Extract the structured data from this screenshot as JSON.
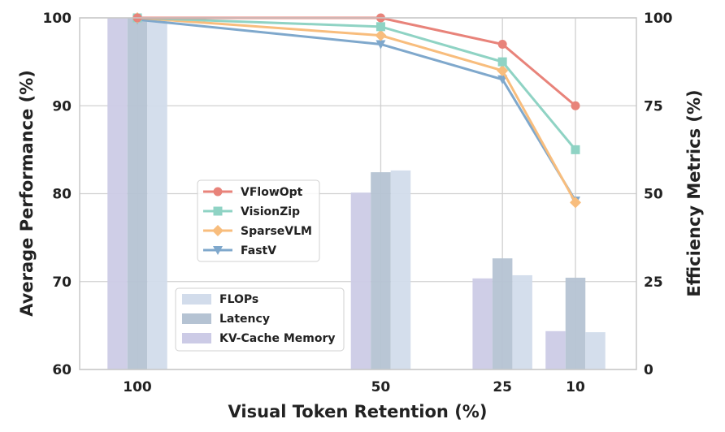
{
  "chart_data": {
    "type": "line+bar",
    "xlabel": "Visual Token Retention (%)",
    "ylabel_left": "Average Performance (%)",
    "ylabel_right": "Efficiency Metrics (%)",
    "x": [
      100,
      50,
      25,
      10
    ],
    "x_tick_labels": [
      "100",
      "50",
      "25",
      "10"
    ],
    "x_axis": "reversed linear",
    "ylim_left": [
      60,
      100
    ],
    "yticks_left": [
      "60",
      "70",
      "80",
      "90",
      "100"
    ],
    "ylim_right": [
      0,
      100
    ],
    "yticks_right": [
      "0",
      "25",
      "50",
      "75",
      "100"
    ],
    "grid": true,
    "line_series": [
      {
        "name": "VFlowOpt",
        "values": [
          100,
          100,
          97,
          90
        ],
        "color": "#e8837a",
        "marker": "circle"
      },
      {
        "name": "VisionZip",
        "values": [
          100,
          99,
          95,
          85
        ],
        "color": "#8fd3c4",
        "marker": "square"
      },
      {
        "name": "SparseVLM",
        "values": [
          100,
          98,
          94,
          79
        ],
        "color": "#f8bd7d",
        "marker": "diamond"
      },
      {
        "name": "FastV",
        "values": [
          99.8,
          97,
          93,
          79.2
        ],
        "color": "#7fa8cc",
        "marker": "triangle-down"
      }
    ],
    "bar_series": [
      {
        "name": "KV-Cache Memory",
        "values": [
          100,
          50.3,
          25.9,
          10.9
        ],
        "color": "#cccbe6"
      },
      {
        "name": "Latency",
        "values": [
          100,
          56.1,
          31.6,
          26.1
        ],
        "color": "#b5c3d3"
      },
      {
        "name": "FLOPs",
        "values": [
          100,
          56.6,
          26.8,
          10.6
        ],
        "color": "#d2dceb"
      }
    ],
    "legend_lines_order": [
      "VFlowOpt",
      "VisionZip",
      "SparseVLM",
      "FastV"
    ],
    "legend_bars_order": [
      "FLOPs",
      "Latency",
      "KV-Cache Memory"
    ],
    "legend_placement": "center-left"
  }
}
